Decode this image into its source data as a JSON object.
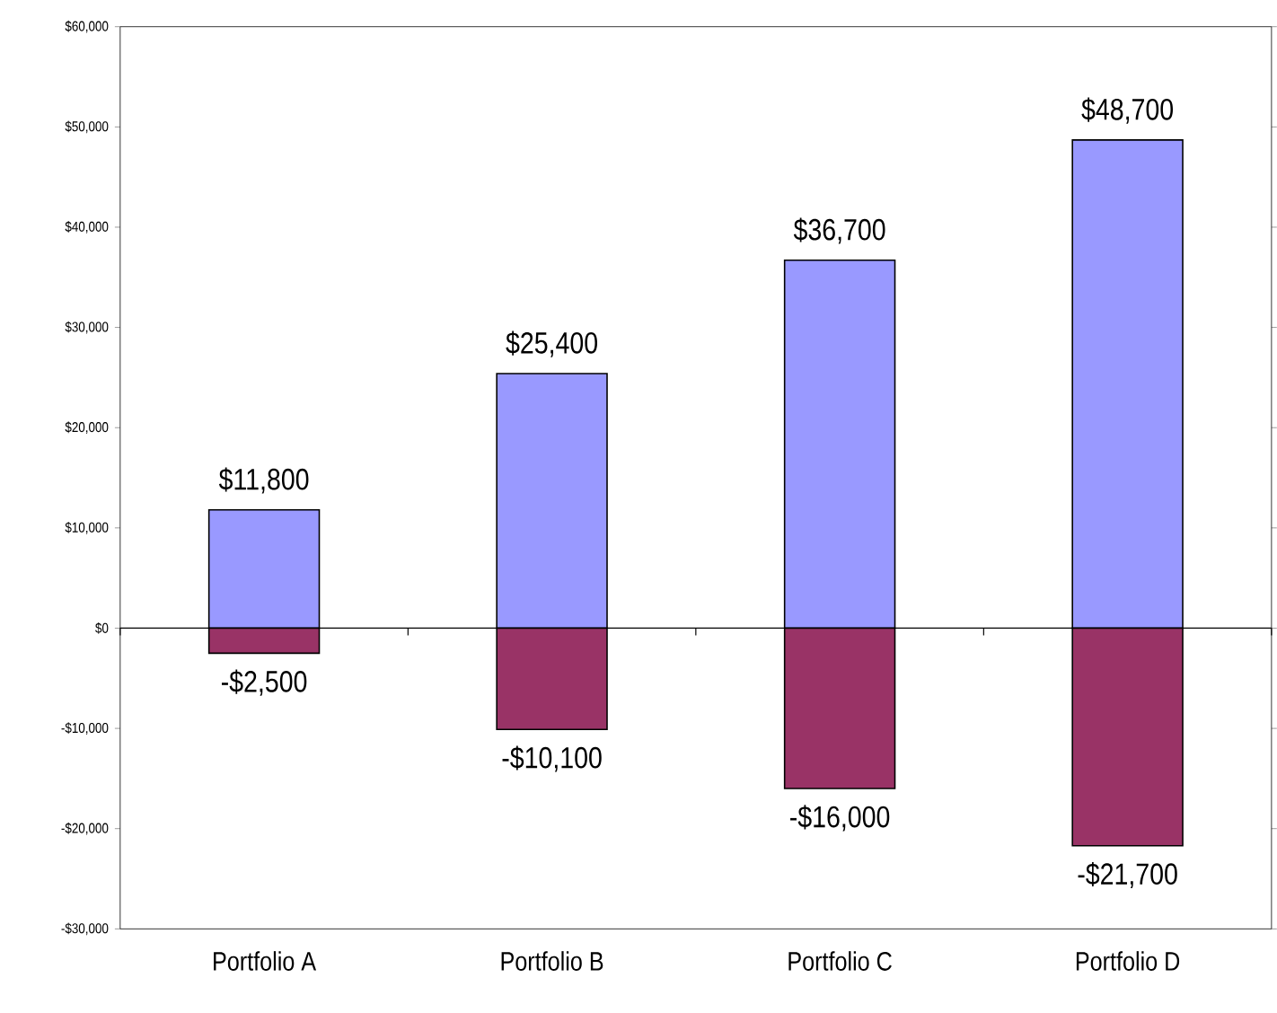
{
  "chart_data": {
    "type": "bar",
    "stacked": true,
    "categories": [
      "Portfolio A",
      "Portfolio B",
      "Portfolio C",
      "Portfolio D"
    ],
    "series": [
      {
        "color": "#9999ff",
        "values": [
          11800,
          25400,
          36700,
          48700
        ],
        "value_labels": [
          "$11,800",
          "$25,400",
          "$36,700",
          "$48,700"
        ]
      },
      {
        "color": "#993366",
        "values": [
          -2500,
          -10100,
          -16000,
          -21700
        ],
        "value_labels": [
          "-$2,500",
          "-$10,100",
          "-$16,000",
          "-$21,700"
        ]
      }
    ],
    "ylim": [
      -30000,
      60000
    ],
    "yticks": [
      {
        "value": -30000,
        "label": "-$30,000"
      },
      {
        "value": -20000,
        "label": "-$20,000"
      },
      {
        "value": -10000,
        "label": "-$10,000"
      },
      {
        "value": 0,
        "label": "$0"
      },
      {
        "value": 10000,
        "label": "$10,000"
      },
      {
        "value": 20000,
        "label": "$20,000"
      },
      {
        "value": 30000,
        "label": "$30,000"
      },
      {
        "value": 40000,
        "label": "$40,000"
      },
      {
        "value": 50000,
        "label": "$50,000"
      },
      {
        "value": 60000,
        "label": "$60,000"
      }
    ]
  }
}
